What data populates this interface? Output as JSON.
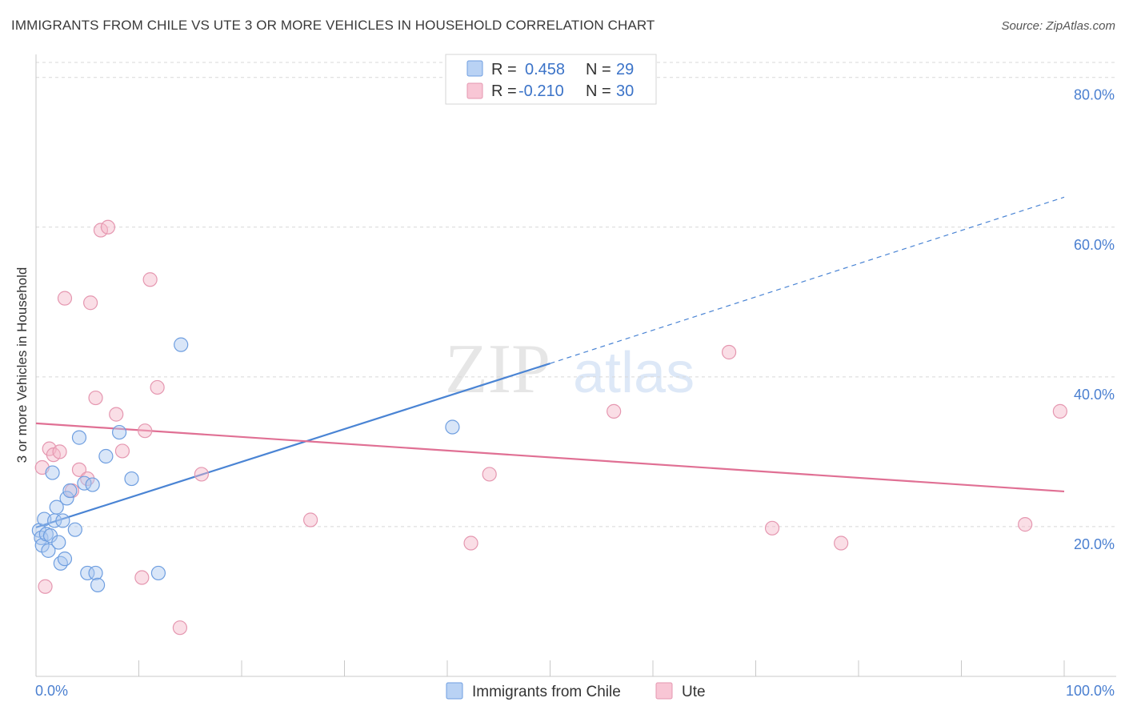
{
  "title": "IMMIGRANTS FROM CHILE VS UTE 3 OR MORE VEHICLES IN HOUSEHOLD CORRELATION CHART",
  "source": "Source: ZipAtlas.com",
  "watermark": {
    "zip": "ZIP",
    "atlas": "atlas"
  },
  "colors": {
    "blue": "#4a84d4",
    "blue_fill": "#aac8f0",
    "pink": "#e07094",
    "pink_fill": "#f5b5c8",
    "grid": "#d8d8d8",
    "axis_text": "#4a7fd0"
  },
  "legend": {
    "rows": [
      {
        "r_label": "R =",
        "r_value": "0.458",
        "n_label": "N =",
        "n_value": "29"
      },
      {
        "r_label": "R =",
        "r_value": "-0.210",
        "n_label": "N =",
        "n_value": "30"
      }
    ]
  },
  "chart_data": {
    "type": "scatter",
    "title": "IMMIGRANTS FROM CHILE VS UTE 3 OR MORE VEHICLES IN HOUSEHOLD CORRELATION CHART",
    "xlabel": "",
    "ylabel": "3 or more Vehicles in Household",
    "xlim": [
      0,
      100
    ],
    "ylim": [
      0,
      82
    ],
    "x_ticks": [
      "0.0%",
      "100.0%"
    ],
    "y_ticks": [
      {
        "value": 20,
        "label": "20.0%"
      },
      {
        "value": 40,
        "label": "40.0%"
      },
      {
        "value": 60,
        "label": "60.0%"
      },
      {
        "value": 80,
        "label": "80.0%"
      }
    ],
    "series": [
      {
        "name": "Immigrants from Chile",
        "color": "blue",
        "R": 0.458,
        "N": 29,
        "points": [
          [
            0.3,
            19.5
          ],
          [
            0.5,
            18.5
          ],
          [
            0.6,
            17.5
          ],
          [
            0.8,
            21.0
          ],
          [
            1.0,
            19.0
          ],
          [
            1.2,
            16.8
          ],
          [
            1.4,
            18.8
          ],
          [
            1.6,
            27.2
          ],
          [
            1.8,
            20.8
          ],
          [
            2.0,
            22.6
          ],
          [
            2.2,
            17.9
          ],
          [
            2.4,
            15.1
          ],
          [
            2.6,
            20.8
          ],
          [
            2.8,
            15.7
          ],
          [
            3.0,
            23.8
          ],
          [
            3.3,
            24.8
          ],
          [
            3.8,
            19.6
          ],
          [
            4.2,
            31.9
          ],
          [
            4.7,
            25.8
          ],
          [
            5.0,
            13.8
          ],
          [
            5.5,
            25.6
          ],
          [
            5.8,
            13.8
          ],
          [
            6.0,
            12.2
          ],
          [
            6.8,
            29.4
          ],
          [
            8.1,
            32.6
          ],
          [
            9.3,
            26.4
          ],
          [
            11.9,
            13.8
          ],
          [
            14.1,
            44.3
          ],
          [
            40.5,
            33.3
          ]
        ],
        "trend": {
          "x0": 0,
          "y0": 19.9,
          "x1": 50,
          "y1": 41.8,
          "dash_to_x": 100,
          "dash_to_y": 64.0
        }
      },
      {
        "name": "Ute",
        "color": "pink",
        "R": -0.21,
        "N": 30,
        "points": [
          [
            0.6,
            27.9
          ],
          [
            1.3,
            30.4
          ],
          [
            1.7,
            29.6
          ],
          [
            2.3,
            30.0
          ],
          [
            2.8,
            50.5
          ],
          [
            3.5,
            24.8
          ],
          [
            4.2,
            27.6
          ],
          [
            5.0,
            26.4
          ],
          [
            5.3,
            49.9
          ],
          [
            5.8,
            37.2
          ],
          [
            6.3,
            59.6
          ],
          [
            7.0,
            60.0
          ],
          [
            7.8,
            35.0
          ],
          [
            8.4,
            30.1
          ],
          [
            10.3,
            13.2
          ],
          [
            10.6,
            32.8
          ],
          [
            11.1,
            53.0
          ],
          [
            11.8,
            38.6
          ],
          [
            14.0,
            6.5
          ],
          [
            16.1,
            27.0
          ],
          [
            26.7,
            20.9
          ],
          [
            42.3,
            17.8
          ],
          [
            44.1,
            27.0
          ],
          [
            56.2,
            35.4
          ],
          [
            67.4,
            43.3
          ],
          [
            71.6,
            19.8
          ],
          [
            78.3,
            17.8
          ],
          [
            96.2,
            20.3
          ],
          [
            99.6,
            35.4
          ],
          [
            0.9,
            12.0
          ]
        ],
        "trend": {
          "x0": 0,
          "y0": 33.8,
          "x1": 100,
          "y1": 24.7
        }
      }
    ]
  }
}
